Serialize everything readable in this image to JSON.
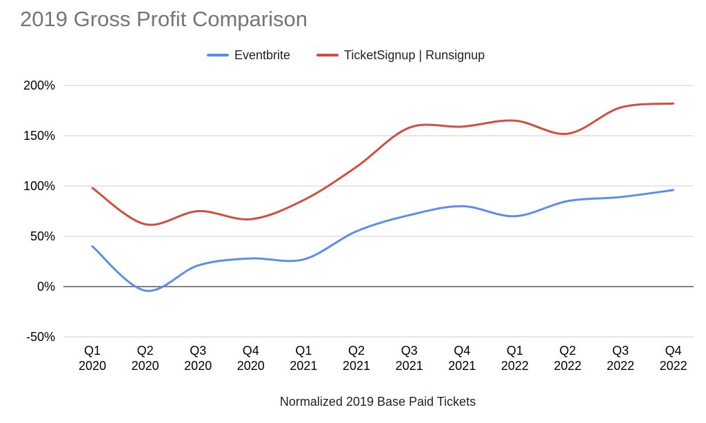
{
  "chart_data": {
    "type": "line",
    "title": "2019 Gross Profit Comparison",
    "xlabel": "Normalized 2019 Base Paid Tickets",
    "ylabel": "",
    "categories": [
      [
        "Q1",
        "2020"
      ],
      [
        "Q2",
        "2020"
      ],
      [
        "Q3",
        "2020"
      ],
      [
        "Q4",
        "2020"
      ],
      [
        "Q1",
        "2021"
      ],
      [
        "Q2",
        "2021"
      ],
      [
        "Q3",
        "2021"
      ],
      [
        "Q4",
        "2021"
      ],
      [
        "Q1",
        "2022"
      ],
      [
        "Q2",
        "2022"
      ],
      [
        "Q3",
        "2022"
      ],
      [
        "Q4",
        "2022"
      ]
    ],
    "series": [
      {
        "name": "Eventbrite",
        "color": "#5b8def",
        "values": [
          40,
          -4,
          21,
          28,
          27,
          55,
          71,
          80,
          70,
          85,
          89,
          96
        ]
      },
      {
        "name": "TicketSignup | Runsignup",
        "color": "#d44b3f",
        "values": [
          98,
          62,
          75,
          67,
          86,
          119,
          158,
          159,
          165,
          152,
          178,
          182
        ]
      }
    ],
    "ylim": [
      -50,
      200
    ],
    "yticks": [
      -50,
      0,
      50,
      100,
      150,
      200
    ],
    "ytick_labels": [
      "-50%",
      "0%",
      "50%",
      "100%",
      "150%",
      "200%"
    ],
    "grid": true,
    "legend_position": "top"
  }
}
